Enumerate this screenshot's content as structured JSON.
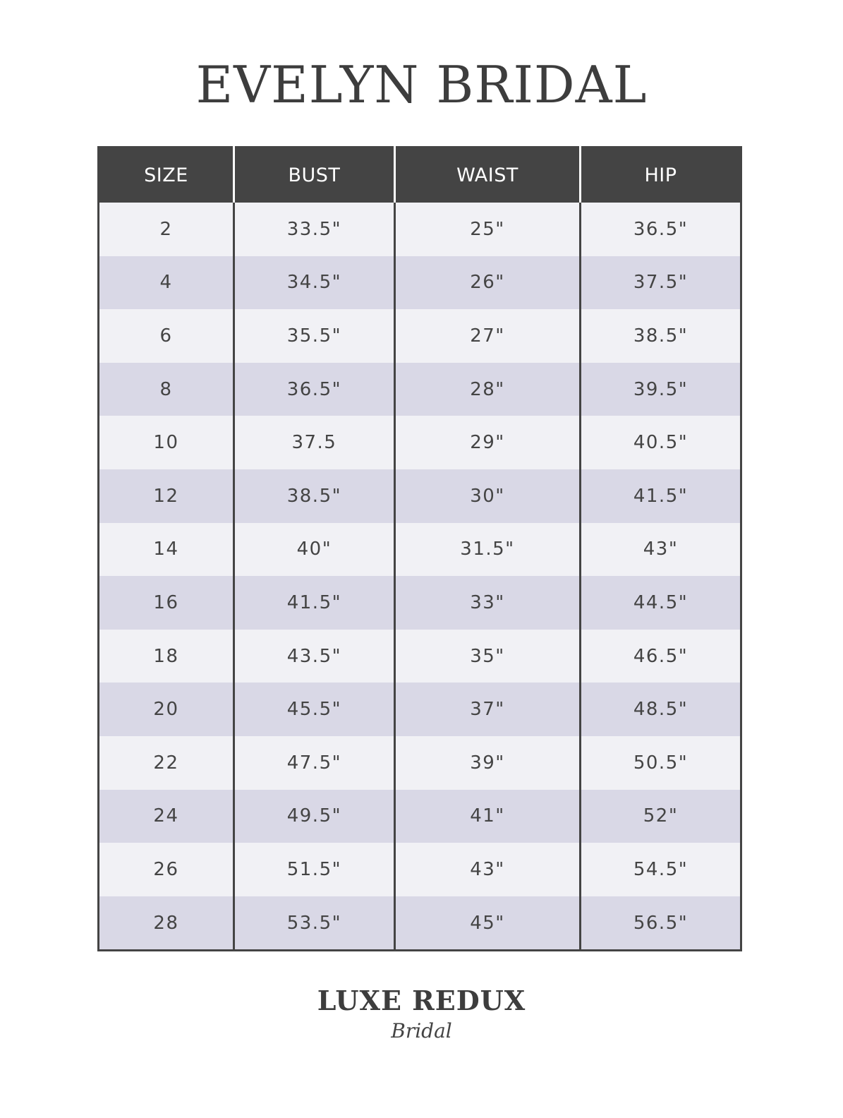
{
  "title": "EVELYN BRIDAL",
  "table": {
    "headers": [
      "SIZE",
      "BUST",
      "WAIST",
      "HIP"
    ],
    "rows": [
      [
        "2",
        "33.5\"",
        "25\"",
        "36.5\""
      ],
      [
        "4",
        "34.5\"",
        "26\"",
        "37.5\""
      ],
      [
        "6",
        "35.5\"",
        "27\"",
        "38.5\""
      ],
      [
        "8",
        "36.5\"",
        "28\"",
        "39.5\""
      ],
      [
        "10",
        "37.5",
        "29\"",
        "40.5\""
      ],
      [
        "12",
        "38.5\"",
        "30\"",
        "41.5\""
      ],
      [
        "14",
        "40\"",
        "31.5\"",
        "43\""
      ],
      [
        "16",
        "41.5\"",
        "33\"",
        "44.5\""
      ],
      [
        "18",
        "43.5\"",
        "35\"",
        "46.5\""
      ],
      [
        "20",
        "45.5\"",
        "37\"",
        "48.5\""
      ],
      [
        "22",
        "47.5\"",
        "39\"",
        "50.5\""
      ],
      [
        "24",
        "49.5\"",
        "41\"",
        "52\""
      ],
      [
        "26",
        "51.5\"",
        "43\"",
        "54.5\""
      ],
      [
        "28",
        "53.5\"",
        "45\"",
        "56.5\""
      ]
    ]
  },
  "logo": {
    "main": "LUXE REDUX",
    "script": "Bridal"
  },
  "colors": {
    "header_bg": "#444444",
    "row_light": "#f1f1f5",
    "row_dark": "#d9d8e6"
  }
}
